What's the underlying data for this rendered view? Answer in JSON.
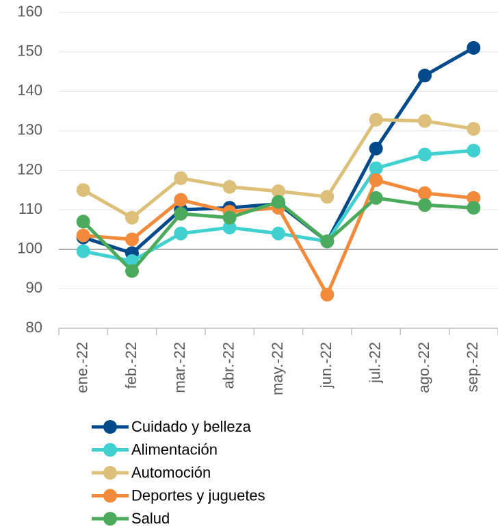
{
  "chart_data": {
    "type": "line",
    "categories": [
      "ene.-22",
      "feb.-22",
      "mar.-22",
      "abr.-22",
      "may.-22",
      "jun.-22",
      "jul.-22",
      "ago.-22",
      "sep.-22"
    ],
    "series": [
      {
        "name": "Cuidado y belleza",
        "color": "#004a8c",
        "values": [
          103,
          99,
          110,
          110.5,
          111.5,
          102,
          125.5,
          144,
          151
        ]
      },
      {
        "name": "Alimentación",
        "color": "#3fd0cf",
        "values": [
          99.5,
          97,
          104,
          105.5,
          104,
          102,
          120.5,
          124,
          125
        ]
      },
      {
        "name": "Automoción",
        "color": "#dcc07a",
        "values": [
          115,
          108,
          118,
          115.8,
          114.7,
          113.3,
          132.8,
          132.5,
          130.5
        ]
      },
      {
        "name": "Deportes y juguetes",
        "color": "#f28a3c",
        "values": [
          103.5,
          102.5,
          112.5,
          109.5,
          110.5,
          88.5,
          117.5,
          114.2,
          113
        ]
      },
      {
        "name": "Salud",
        "color": "#4caa5c",
        "values": [
          107,
          94.5,
          109,
          108,
          112,
          102,
          113,
          111.2,
          110.5
        ]
      }
    ],
    "ylim": [
      80,
      160
    ],
    "yticks": [
      80,
      90,
      100,
      110,
      120,
      130,
      140,
      150,
      160
    ],
    "grid": true,
    "baseline": 100,
    "legend": "bottom"
  }
}
